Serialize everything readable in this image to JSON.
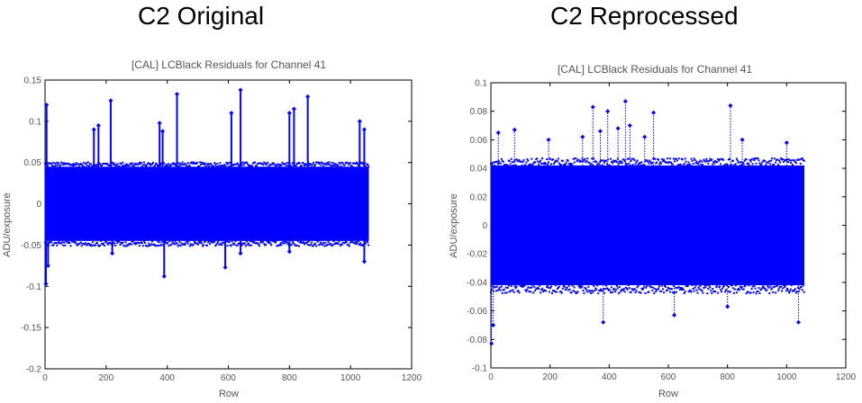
{
  "panels": [
    {
      "heading": "C2 Original"
    },
    {
      "heading": "C2 Reprocessed"
    }
  ],
  "chart_data": [
    {
      "type": "scatter",
      "title": "[CAL] LCBlack Residuals for Channel 41",
      "xlabel": "Row",
      "ylabel": "ADU/exposure",
      "xlim": [
        0,
        1200
      ],
      "ylim": [
        -0.2,
        0.15
      ],
      "xticks": [
        0,
        200,
        400,
        600,
        800,
        1000,
        1200
      ],
      "yticks": [
        -0.2,
        -0.15,
        -0.1,
        -0.05,
        0,
        0.05,
        0.1,
        0.15
      ],
      "ytick_labels": [
        "-0.2",
        "-0.15",
        "-0.1",
        "-0.05",
        "0",
        "0.05",
        "0.1",
        "0.15"
      ],
      "grid": false,
      "series": [
        {
          "color": "#0000ff",
          "band": {
            "x_range": [
              0,
              1060
            ],
            "upper": 0.045,
            "lower": -0.045
          },
          "peaks": [
            {
              "x": 5,
              "y": 0.12
            },
            {
              "x": 160,
              "y": 0.09
            },
            {
              "x": 175,
              "y": 0.095
            },
            {
              "x": 215,
              "y": 0.125
            },
            {
              "x": 375,
              "y": 0.098
            },
            {
              "x": 385,
              "y": 0.088
            },
            {
              "x": 432,
              "y": 0.133
            },
            {
              "x": 610,
              "y": 0.11
            },
            {
              "x": 640,
              "y": 0.138
            },
            {
              "x": 800,
              "y": 0.11
            },
            {
              "x": 815,
              "y": 0.115
            },
            {
              "x": 860,
              "y": 0.13
            },
            {
              "x": 1030,
              "y": 0.1
            },
            {
              "x": 1045,
              "y": 0.09
            }
          ],
          "troughs": [
            {
              "x": 3,
              "y": -0.097
            },
            {
              "x": 10,
              "y": -0.075
            },
            {
              "x": 220,
              "y": -0.06
            },
            {
              "x": 390,
              "y": -0.088
            },
            {
              "x": 590,
              "y": -0.077
            },
            {
              "x": 640,
              "y": -0.06
            },
            {
              "x": 800,
              "y": -0.058
            },
            {
              "x": 1045,
              "y": -0.07
            }
          ]
        }
      ]
    },
    {
      "type": "scatter",
      "title": "[CAL] LCBlack Residuals for Channel 41",
      "xlabel": "Row",
      "ylabel": "ADU/exposure",
      "xlim": [
        0,
        1200
      ],
      "ylim": [
        -0.1,
        0.1
      ],
      "xticks": [
        0,
        200,
        400,
        600,
        800,
        1000,
        1200
      ],
      "yticks": [
        -0.1,
        -0.08,
        -0.06,
        -0.04,
        -0.02,
        0,
        0.02,
        0.04,
        0.06,
        0.08,
        0.1
      ],
      "ytick_labels": [
        "-0.1",
        "-0.08",
        "-0.06",
        "-0.04",
        "-0.02",
        "0",
        "0.02",
        "0.04",
        "0.06",
        "0.08",
        "0.1"
      ],
      "grid": false,
      "series": [
        {
          "color": "#0000ff",
          "band": {
            "x_range": [
              0,
              1060
            ],
            "upper": 0.042,
            "lower": -0.042
          },
          "peaks": [
            {
              "x": 25,
              "y": 0.065
            },
            {
              "x": 80,
              "y": 0.067
            },
            {
              "x": 195,
              "y": 0.06
            },
            {
              "x": 310,
              "y": 0.062
            },
            {
              "x": 345,
              "y": 0.083
            },
            {
              "x": 370,
              "y": 0.066
            },
            {
              "x": 395,
              "y": 0.08
            },
            {
              "x": 430,
              "y": 0.068
            },
            {
              "x": 455,
              "y": 0.087
            },
            {
              "x": 470,
              "y": 0.07
            },
            {
              "x": 520,
              "y": 0.062
            },
            {
              "x": 550,
              "y": 0.079
            },
            {
              "x": 810,
              "y": 0.084
            },
            {
              "x": 850,
              "y": 0.06
            },
            {
              "x": 1000,
              "y": 0.058
            }
          ],
          "troughs": [
            {
              "x": 2,
              "y": -0.083
            },
            {
              "x": 8,
              "y": -0.07
            },
            {
              "x": 380,
              "y": -0.068
            },
            {
              "x": 620,
              "y": -0.063
            },
            {
              "x": 800,
              "y": -0.057
            },
            {
              "x": 1040,
              "y": -0.068
            }
          ]
        }
      ]
    }
  ]
}
